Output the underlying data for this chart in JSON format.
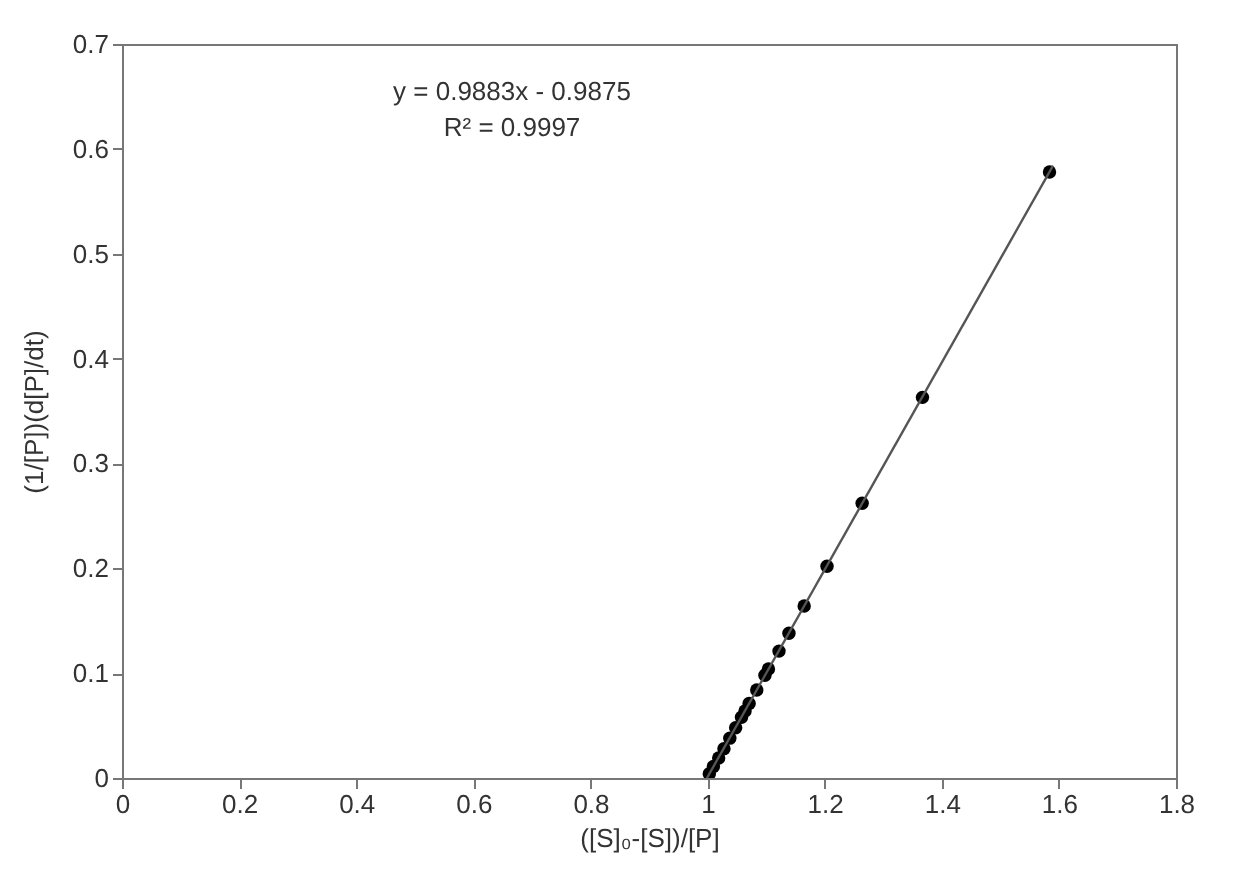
{
  "chart_data": {
    "type": "scatter",
    "xlabel": "([S]₀-[S])/[P]",
    "ylabel": "(1/[P])(d[P]/dt)",
    "annotations": [
      "y = 0.9883x - 0.9875",
      "R² = 0.9997"
    ],
    "xlim": [
      0,
      1.8
    ],
    "xticks": [
      0,
      0.2,
      0.4,
      0.6,
      0.8,
      1,
      1.2,
      1.4,
      1.6,
      1.8
    ],
    "ylim": [
      0,
      0.7
    ],
    "yticks": [
      0,
      0.1,
      0.2,
      0.3,
      0.4,
      0.5,
      0.6,
      0.7
    ],
    "grid": false,
    "marker": "circle",
    "series": [
      {
        "color": "#000000",
        "x": [
          1.584,
          1.367,
          1.264,
          1.204,
          1.165,
          1.139,
          1.122,
          1.104,
          1.098,
          1.084,
          1.071,
          1.064,
          1.058,
          1.048,
          1.038,
          1.028,
          1.019,
          1.01,
          1.003
        ],
        "values": [
          0.578,
          0.363,
          0.262,
          0.202,
          0.164,
          0.138,
          0.121,
          0.104,
          0.098,
          0.084,
          0.071,
          0.064,
          0.058,
          0.048,
          0.038,
          0.028,
          0.019,
          0.011,
          0.004
        ]
      },
      {
        "type": "line",
        "color": "#555555",
        "x": [
          0.999,
          1.59
        ],
        "values": [
          0,
          0.584
        ],
        "marker": "none",
        "line_style": "solid"
      }
    ]
  }
}
